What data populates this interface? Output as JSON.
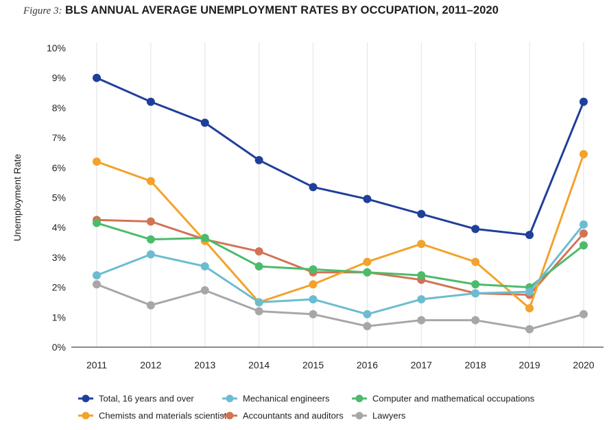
{
  "figure_label": "Figure 3:",
  "colors": {
    "total": "#1f3f99",
    "mechanical": "#6cbcd0",
    "computer": "#4cbb6c",
    "chemists": "#f3a22b",
    "accountants": "#d17354",
    "lawyers": "#a7a7a7",
    "grid": "#e2e2e2",
    "axis": "#444444"
  },
  "chart_data": {
    "type": "line",
    "title": "BLS ANNUAL AVERAGE UNEMPLOYMENT RATES BY OCCUPATION, 2011–2020",
    "xlabel": "",
    "ylabel": "Unemployment Rate",
    "x": [
      "2011",
      "2012",
      "2013",
      "2014",
      "2015",
      "2016",
      "2017",
      "2018",
      "2019",
      "2020"
    ],
    "ylim": [
      0,
      10
    ],
    "yticks": [
      "0%",
      "1%",
      "2%",
      "3%",
      "4%",
      "5%",
      "6%",
      "7%",
      "8%",
      "9%",
      "10%"
    ],
    "grid": "vertical",
    "legend_position": "bottom",
    "series": [
      {
        "key": "total",
        "name": "Total, 16 years and over",
        "values": [
          9.0,
          8.2,
          7.5,
          6.25,
          5.35,
          4.95,
          4.45,
          3.95,
          3.75,
          8.2
        ]
      },
      {
        "key": "mechanical",
        "name": "Mechanical engineers",
        "values": [
          2.4,
          3.1,
          2.7,
          1.5,
          1.6,
          1.1,
          1.6,
          1.8,
          1.85,
          4.1
        ]
      },
      {
        "key": "computer",
        "name": "Computer and mathematical occupations",
        "values": [
          4.15,
          3.6,
          3.65,
          2.7,
          2.6,
          2.5,
          2.4,
          2.1,
          2.0,
          3.4
        ]
      },
      {
        "key": "chemists",
        "name": "Chemists and materials scientists",
        "values": [
          6.2,
          5.55,
          3.55,
          1.5,
          2.1,
          2.85,
          3.45,
          2.85,
          1.3,
          6.45
        ]
      },
      {
        "key": "accountants",
        "name": "Accountants and auditors",
        "values": [
          4.25,
          4.2,
          3.6,
          3.2,
          2.5,
          2.5,
          2.25,
          1.8,
          1.75,
          3.8
        ]
      },
      {
        "key": "lawyers",
        "name": "Lawyers",
        "values": [
          2.1,
          1.4,
          1.9,
          1.2,
          1.1,
          0.7,
          0.9,
          0.9,
          0.6,
          1.1
        ]
      }
    ],
    "legend_rows": [
      [
        "total",
        "mechanical",
        "computer"
      ],
      [
        "chemists",
        "accountants",
        "lawyers"
      ]
    ]
  }
}
